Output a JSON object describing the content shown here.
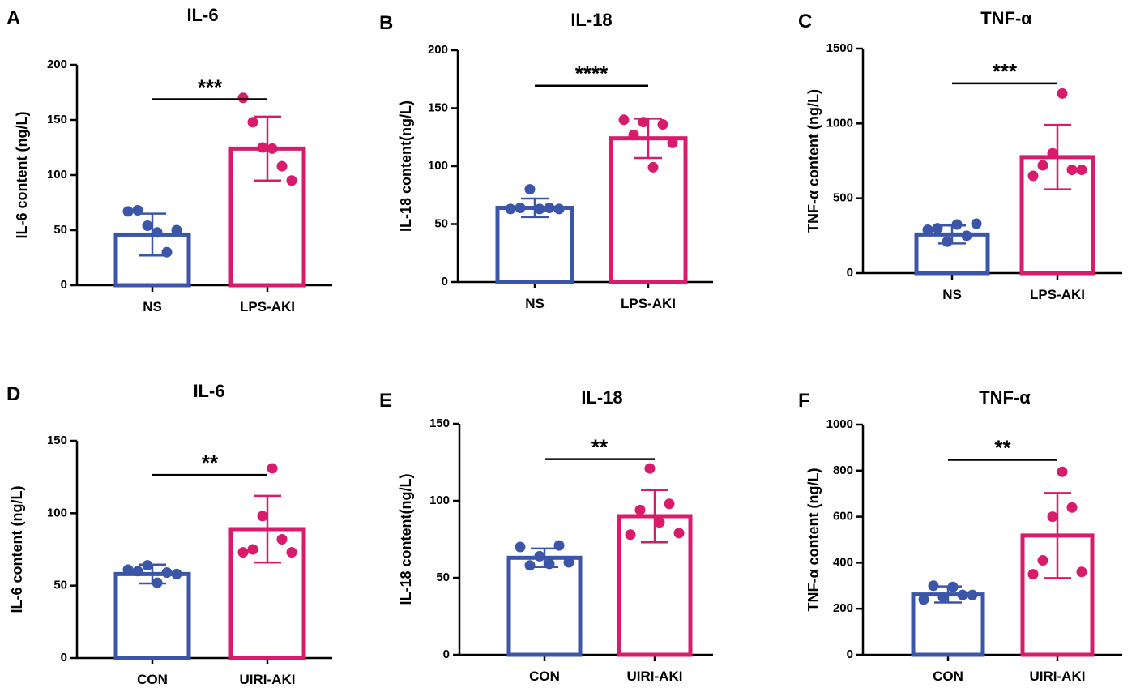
{
  "colors": {
    "blue": "#3b55a8",
    "pink": "#d81b6a",
    "axis": "#000000"
  },
  "chart_data": [
    {
      "panel": "A",
      "type": "bar",
      "title": "IL-6",
      "ylabel": "IL-6 content (ng/L)",
      "ylim": [
        0,
        200
      ],
      "yticks": [
        0,
        50,
        100,
        150,
        200
      ],
      "categories": [
        "NS",
        "LPS-AKI"
      ],
      "significance": "***",
      "series": [
        {
          "name": "NS",
          "color": "blue",
          "mean": 46,
          "sd": 19,
          "points": [
            67,
            68,
            54,
            48,
            30,
            50
          ]
        },
        {
          "name": "LPS-AKI",
          "color": "pink",
          "mean": 124,
          "sd": 29,
          "points": [
            170,
            148,
            125,
            124,
            108,
            95
          ]
        }
      ]
    },
    {
      "panel": "B",
      "type": "bar",
      "title": "IL-18",
      "ylabel": "IL-18 content(ng/L)",
      "ylim": [
        0,
        200
      ],
      "yticks": [
        0,
        50,
        100,
        150,
        200
      ],
      "categories": [
        "NS",
        "LPS-AKI"
      ],
      "significance": "****",
      "series": [
        {
          "name": "NS",
          "color": "blue",
          "mean": 64,
          "sd": 8,
          "points": [
            63,
            64,
            80,
            63,
            64,
            63
          ]
        },
        {
          "name": "LPS-AKI",
          "color": "pink",
          "mean": 124,
          "sd": 17,
          "points": [
            140,
            127,
            138,
            99,
            136,
            120
          ]
        }
      ]
    },
    {
      "panel": "C",
      "type": "bar",
      "title": "TNF-α",
      "ylabel": "TNF-α content (ng/L)",
      "ylim": [
        0,
        1500
      ],
      "yticks": [
        0,
        500,
        1000,
        1500
      ],
      "categories": [
        "NS",
        "LPS-AKI"
      ],
      "significance": "***",
      "series": [
        {
          "name": "NS",
          "color": "blue",
          "mean": 258,
          "sd": 60,
          "points": [
            290,
            300,
            210,
            325,
            250,
            330
          ]
        },
        {
          "name": "LPS-AKI",
          "color": "pink",
          "mean": 775,
          "sd": 215,
          "points": [
            650,
            720,
            800,
            1200,
            690,
            690
          ]
        }
      ]
    },
    {
      "panel": "D",
      "type": "bar",
      "title": "IL-6",
      "ylabel": "IL-6 content (ng/L)",
      "ylim": [
        0,
        150
      ],
      "yticks": [
        0,
        50,
        100,
        150
      ],
      "categories": [
        "CON",
        "UIRI-AKI"
      ],
      "significance": "**",
      "series": [
        {
          "name": "CON",
          "color": "blue",
          "mean": 58,
          "sd": 6.5,
          "points": [
            61,
            60,
            64,
            52,
            59,
            58
          ]
        },
        {
          "name": "UIRI-AKI",
          "color": "pink",
          "mean": 89,
          "sd": 23,
          "points": [
            73,
            75,
            98,
            131,
            82,
            73
          ]
        }
      ]
    },
    {
      "panel": "E",
      "type": "bar",
      "title": "IL-18",
      "ylabel": "IL-18 content(ng/L)",
      "ylim": [
        0,
        150
      ],
      "yticks": [
        0,
        50,
        100,
        150
      ],
      "categories": [
        "CON",
        "UIRI-AKI"
      ],
      "significance": "**",
      "series": [
        {
          "name": "CON",
          "color": "blue",
          "mean": 63,
          "sd": 6,
          "points": [
            70,
            58,
            64,
            59,
            71,
            60
          ]
        },
        {
          "name": "UIRI-AKI",
          "color": "pink",
          "mean": 90,
          "sd": 17,
          "points": [
            78,
            94,
            121,
            86,
            98,
            79
          ]
        }
      ]
    },
    {
      "panel": "F",
      "type": "bar",
      "title": "TNF-α",
      "ylabel": "TNF-α content (ng/L)",
      "ylim": [
        0,
        1000
      ],
      "yticks": [
        0,
        200,
        400,
        600,
        800,
        1000
      ],
      "categories": [
        "CON",
        "UIRI-AKI"
      ],
      "significance": "**",
      "series": [
        {
          "name": "CON",
          "color": "blue",
          "mean": 262,
          "sd": 35,
          "points": [
            240,
            300,
            250,
            295,
            260,
            260
          ]
        },
        {
          "name": "UIRI-AKI",
          "color": "pink",
          "mean": 518,
          "sd": 185,
          "points": [
            350,
            410,
            600,
            795,
            640,
            360
          ]
        }
      ]
    }
  ]
}
